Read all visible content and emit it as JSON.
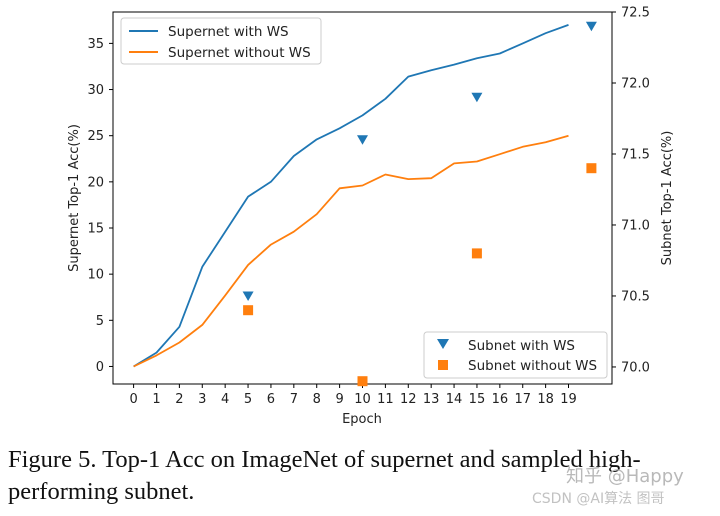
{
  "chart_data": {
    "type": "line",
    "xlabel": "Epoch",
    "ylabel_left": "Supernet Top-1 Acc(%)",
    "ylabel_right": "Subnet Top-1 Acc(%)",
    "x_ticks": [
      0,
      1,
      2,
      3,
      4,
      5,
      6,
      7,
      8,
      9,
      10,
      11,
      12,
      13,
      14,
      15,
      16,
      17,
      18,
      19
    ],
    "y_left_ticks": [
      0,
      5,
      10,
      15,
      20,
      25,
      30,
      35
    ],
    "y_left_tick_labels": [
      "0",
      "5",
      "10",
      "15",
      "20",
      "25",
      "30",
      "35"
    ],
    "y_right_ticks": [
      70.0,
      70.5,
      71.0,
      71.5,
      72.0,
      72.5
    ],
    "y_right_tick_labels": [
      "70.0",
      "70.5",
      "71.0",
      "71.5",
      "72.0",
      "72.5"
    ],
    "xlim": [
      -0.9,
      20.9
    ],
    "ylim_left": [
      -1.9,
      38.4
    ],
    "ylim_right": [
      69.88,
      72.5
    ],
    "legend_top_left": {
      "series": [
        {
          "name": "Supernet with WS",
          "color": "#1f77b4"
        },
        {
          "name": "Supernet without WS",
          "color": "#ff7f0e"
        }
      ]
    },
    "legend_bottom_right": {
      "series": [
        {
          "name": "Subnet with WS",
          "color": "#1f77b4",
          "marker": "triangle-down"
        },
        {
          "name": "Subnet without WS",
          "color": "#ff7f0e",
          "marker": "square"
        }
      ]
    },
    "line_series": [
      {
        "name": "Supernet with WS",
        "color": "#1f77b4",
        "x": [
          0,
          1,
          2,
          3,
          4,
          5,
          6,
          7,
          8,
          9,
          10,
          11,
          12,
          13,
          14,
          15,
          16,
          17,
          18,
          19
        ],
        "values": [
          0,
          1.5,
          4.3,
          10.8,
          14.6,
          18.4,
          20.0,
          22.8,
          24.6,
          25.8,
          27.2,
          29.0,
          31.4,
          32.1,
          32.7,
          33.4,
          33.9,
          35.0,
          36.1,
          37.0
        ]
      },
      {
        "name": "Supernet without WS",
        "color": "#ff7f0e",
        "x": [
          0,
          1,
          2,
          3,
          4,
          5,
          6,
          7,
          8,
          9,
          10,
          11,
          12,
          13,
          14,
          15,
          16,
          17,
          18,
          19
        ],
        "values": [
          0,
          1.2,
          2.6,
          4.5,
          7.7,
          11.0,
          13.2,
          14.6,
          16.5,
          19.3,
          19.6,
          20.8,
          20.3,
          20.4,
          22.0,
          22.2,
          23.0,
          23.8,
          24.3,
          25.0
        ]
      }
    ],
    "scatter_series": [
      {
        "name": "Subnet with WS",
        "color": "#1f77b4",
        "marker": "triangle-down",
        "axis": "right",
        "x": [
          5,
          10,
          15,
          20
        ],
        "values": [
          70.5,
          71.6,
          71.9,
          72.4
        ]
      },
      {
        "name": "Subnet without WS",
        "color": "#ff7f0e",
        "marker": "square",
        "axis": "right",
        "x": [
          5,
          10,
          15,
          20
        ],
        "values": [
          70.4,
          69.9,
          70.8,
          71.4
        ]
      }
    ]
  },
  "caption": "Figure 5. Top-1 Acc on ImageNet of supernet and sampled high-performing subnet.",
  "watermark": {
    "line1": "知乎 @Happy",
    "line2": "CSDN @AI算法 图哥"
  }
}
